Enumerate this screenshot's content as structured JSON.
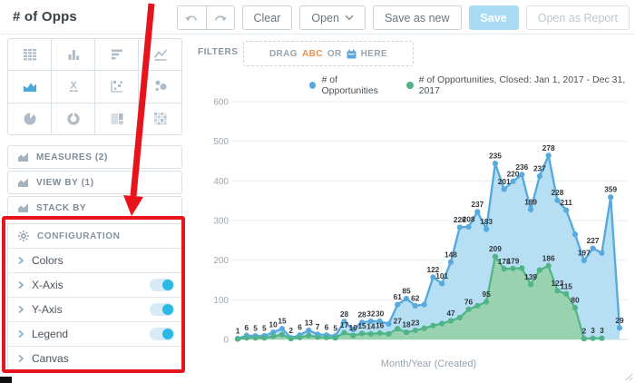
{
  "window": {
    "title": "# of Opps"
  },
  "toolbar": {
    "undo_icon": "undo-arrow",
    "redo_icon": "redo-arrow",
    "clear_label": "Clear",
    "open_label": "Open",
    "save_as_new_label": "Save as new",
    "save_label": "Save",
    "open_as_report_label": "Open as Report"
  },
  "sidebar": {
    "viz_types": [
      {
        "icon": "table-icon",
        "selected": false
      },
      {
        "icon": "column-chart-icon",
        "selected": false
      },
      {
        "icon": "bar-chart-icon",
        "selected": false
      },
      {
        "icon": "line-chart-icon",
        "selected": false
      },
      {
        "icon": "area-chart-icon",
        "selected": true
      },
      {
        "icon": "headline-icon",
        "selected": false
      },
      {
        "icon": "scatter-plot-icon",
        "selected": false
      },
      {
        "icon": "bubble-chart-icon",
        "selected": false
      },
      {
        "icon": "pie-chart-icon",
        "selected": false
      },
      {
        "icon": "donut-chart-icon",
        "selected": false
      },
      {
        "icon": "treemap-icon",
        "selected": false
      },
      {
        "icon": "heatmap-icon",
        "selected": false
      }
    ],
    "sections": [
      {
        "label": "MEASURES (2)"
      },
      {
        "label": "VIEW BY (1)"
      },
      {
        "label": "STACK BY"
      }
    ],
    "configuration": {
      "title": "CONFIGURATION",
      "items": [
        {
          "label": "Colors",
          "toggle": null
        },
        {
          "label": "X-Axis",
          "toggle": true
        },
        {
          "label": "Y-Axis",
          "toggle": true
        },
        {
          "label": "Legend",
          "toggle": true
        },
        {
          "label": "Canvas",
          "toggle": null
        }
      ]
    }
  },
  "filters": {
    "label": "FILTERS",
    "drag": "DRAG",
    "abc": "ABC",
    "or": "OR",
    "here": "HERE"
  },
  "annotation": {
    "highlight_color": "#E8141C"
  },
  "chart_data": {
    "type": "area",
    "stacked": true,
    "xlabel": "Month/Year (Created)",
    "ylim": [
      0,
      600
    ],
    "yticks": [
      0,
      100,
      200,
      300,
      400,
      500,
      600
    ],
    "legend_position": "top",
    "grid": true,
    "series": [
      {
        "name": "# of Opportunities",
        "color": "#57AADF",
        "fill": "#B7DFF3",
        "values": [
          1,
          6,
          5,
          5,
          10,
          15,
          2,
          6,
          13,
          7,
          6,
          5,
          28,
          15,
          28,
          32,
          30,
          25,
          61,
          85,
          62,
          60,
          122,
          101,
          148,
          228,
          208,
          237,
          183,
          235,
          201,
          220,
          236,
          189,
          237,
          278,
          228,
          211,
          185,
          197,
          227,
          215,
          359,
          29
        ],
        "labels": [
          "1",
          "6",
          "5",
          "5",
          "10",
          "15",
          "2",
          "6",
          "13",
          "7",
          "6",
          "5",
          "28",
          "",
          "28",
          "32",
          "30",
          "",
          "61",
          "85",
          "62",
          "",
          "122",
          "101",
          "148",
          "228",
          "208",
          "237",
          "183",
          "235",
          "201",
          "220",
          "236",
          "189",
          "237",
          "278",
          "228",
          "211",
          "",
          "197",
          "227",
          "",
          "359",
          "29"
        ]
      },
      {
        "name": "# of Opportunities, Closed: Jan 1, 2017 - Dec 31, 2017",
        "color": "#4FB487",
        "fill": "#98D2AF",
        "values": [
          1,
          4,
          4,
          4,
          8,
          12,
          2,
          5,
          10,
          6,
          5,
          4,
          17,
          10,
          15,
          14,
          16,
          14,
          27,
          18,
          23,
          28,
          35,
          40,
          47,
          55,
          76,
          85,
          95,
          209,
          178,
          179,
          180,
          139,
          175,
          186,
          123,
          115,
          80,
          2,
          3,
          3,
          null,
          null
        ],
        "labels": [
          "",
          "",
          "",
          "",
          "",
          "",
          "",
          "",
          "",
          "",
          "",
          "",
          "17",
          "10",
          "15",
          "14",
          "16",
          "",
          "27",
          "18",
          "23",
          "",
          "",
          "",
          "47",
          "",
          "76",
          "",
          "95",
          "209",
          "178",
          "179",
          "",
          "139",
          "",
          "186",
          "123",
          "115",
          "80",
          "2",
          "3",
          "3",
          "",
          ""
        ]
      }
    ]
  }
}
